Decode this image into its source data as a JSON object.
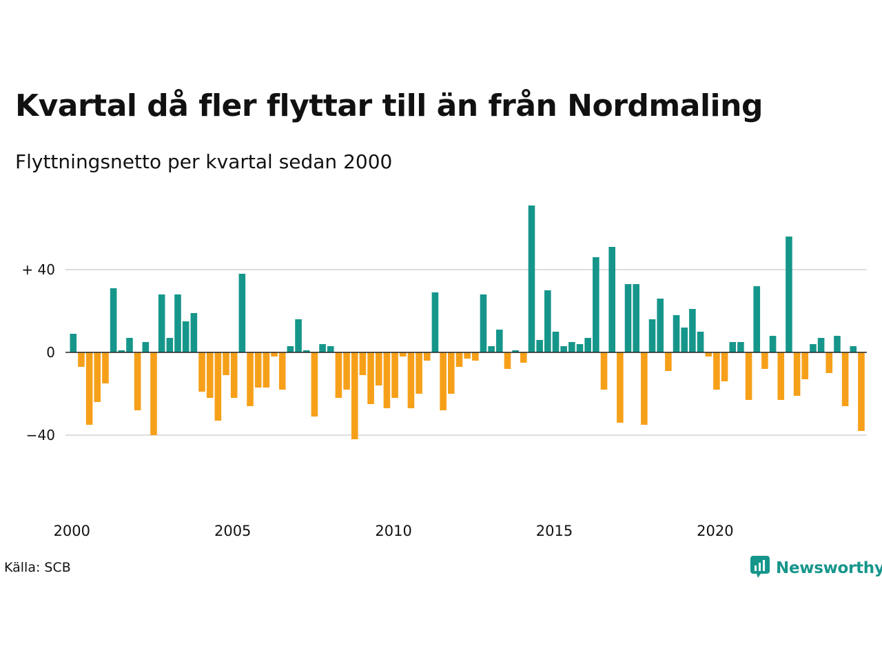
{
  "title": "Kvartal då fler flyttar till än från Nordmaling",
  "subtitle": "Flyttningsnetto per kvartal sedan 2000",
  "source": "Källa: SCB",
  "brand": {
    "name": "Newsworthy",
    "icon": "newsworthy-logo-icon"
  },
  "colors": {
    "positive": "#16968b",
    "negative": "#f6a01a",
    "grid": "#dddddd",
    "zero": "#222222"
  },
  "chart_data": {
    "type": "bar",
    "x_start": "2000 Q1",
    "periods_per_year": 4,
    "values": [
      9,
      -7,
      -35,
      -24,
      -15,
      31,
      1,
      7,
      -28,
      5,
      -40,
      28,
      7,
      28,
      15,
      19,
      -19,
      -22,
      -33,
      -11,
      -22,
      38,
      -26,
      -17,
      -17,
      -2,
      -18,
      3,
      16,
      1,
      -31,
      4,
      3,
      -22,
      -18,
      -42,
      -11,
      -25,
      -16,
      -27,
      -22,
      -2,
      -27,
      -20,
      -4,
      29,
      -28,
      -20,
      -7,
      -3,
      -4,
      28,
      3,
      11,
      -8,
      1,
      -5,
      71,
      6,
      30,
      10,
      3,
      5,
      4,
      7,
      46,
      -18,
      51,
      -34,
      33,
      33,
      -35,
      16,
      26,
      -9,
      18,
      12,
      21,
      10,
      -2,
      -18,
      -14,
      5,
      5,
      -23,
      32,
      -8,
      8,
      -23,
      56,
      -21,
      -13,
      4,
      7,
      -10,
      8,
      -26,
      3,
      -38
    ],
    "ylim": [
      -72,
      72
    ],
    "yticks": [
      {
        "value": 40,
        "label": "+ 40"
      },
      {
        "value": 0,
        "label": "0"
      },
      {
        "value": -40,
        "label": "−40"
      }
    ],
    "xticks": [
      {
        "year": 2000,
        "label": "2000"
      },
      {
        "year": 2005,
        "label": "2005"
      },
      {
        "year": 2010,
        "label": "2010"
      },
      {
        "year": 2015,
        "label": "2015"
      },
      {
        "year": 2020,
        "label": "2020"
      }
    ],
    "grid": true,
    "legend": "none"
  }
}
